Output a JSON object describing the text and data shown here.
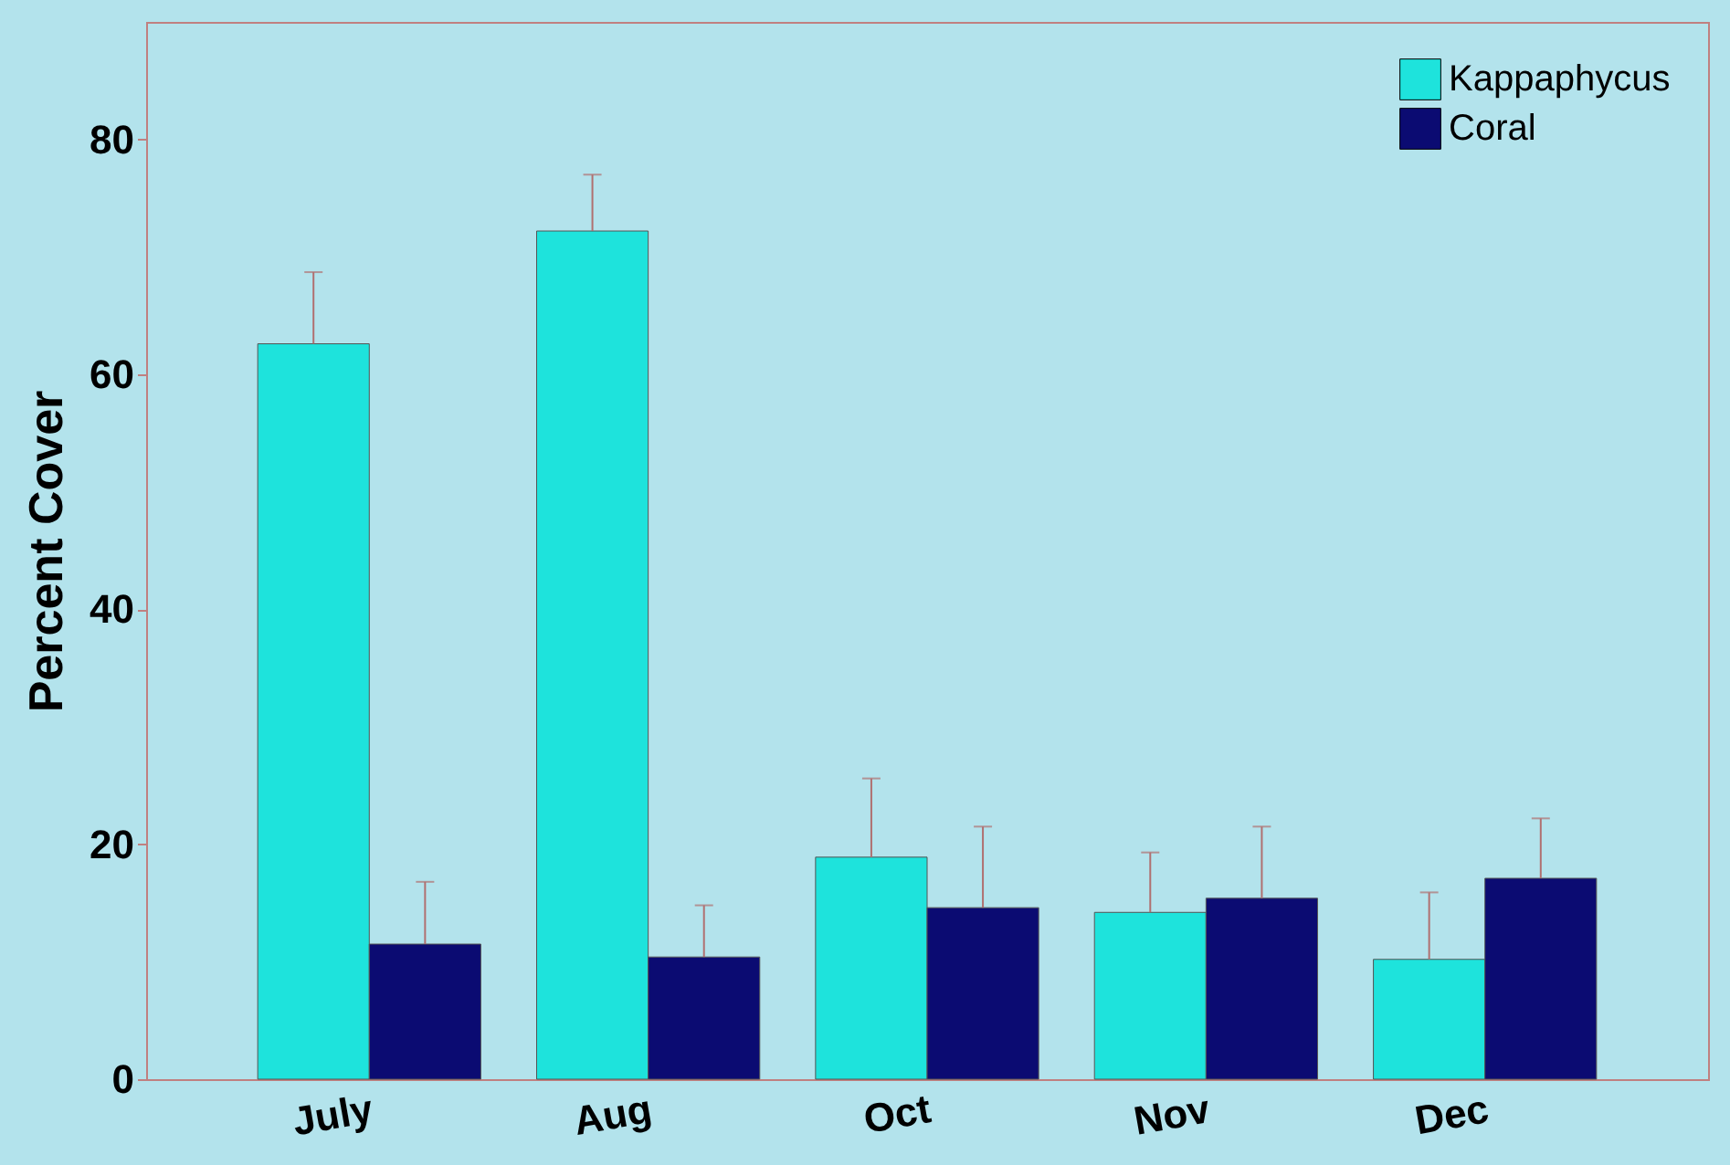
{
  "chart_data": {
    "type": "bar",
    "ylabel": "Percent Cover",
    "categories": [
      "July",
      "Aug",
      "Oct",
      "Nov",
      "Dec"
    ],
    "series": [
      {
        "name": "Kappaphycus",
        "color": "#1ee3dc",
        "values": [
          62.6,
          72.2,
          18.9,
          14.2,
          10.2
        ],
        "errors": [
          [
            62.6,
            68.7
          ],
          [
            72.2,
            77.0
          ],
          [
            18.9,
            25.6
          ],
          [
            14.2,
            19.3
          ],
          [
            10.2,
            15.9
          ]
        ]
      },
      {
        "name": "Coral",
        "color": "#0b0b72",
        "values": [
          11.5,
          10.4,
          14.6,
          15.4,
          17.1
        ],
        "errors": [
          [
            11.5,
            16.8
          ],
          [
            10.4,
            14.8
          ],
          [
            14.6,
            21.5
          ],
          [
            15.4,
            21.5
          ],
          [
            17.1,
            22.2
          ]
        ]
      }
    ],
    "ylim": [
      0,
      90
    ],
    "yticks": [
      0,
      20,
      40,
      60,
      80
    ],
    "grid": false,
    "legend": "top right"
  }
}
